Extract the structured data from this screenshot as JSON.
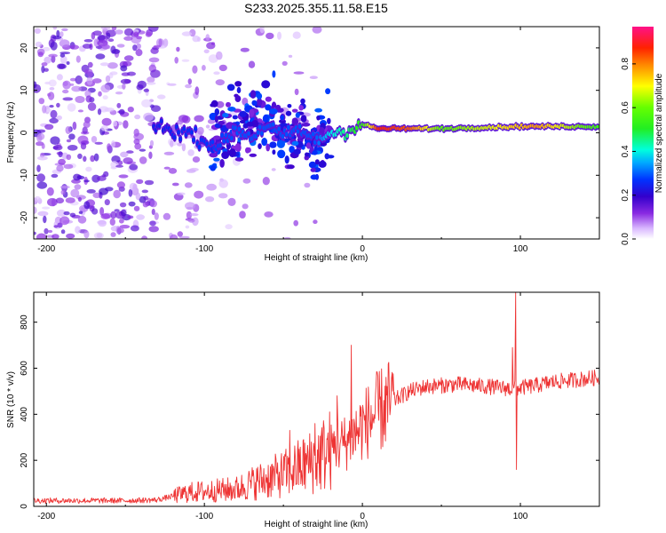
{
  "chart_data": [
    {
      "type": "heatmap",
      "title": "S233.2025.355.11.58.E15",
      "xlabel": "Height of straight line (km)",
      "ylabel": "Frequency (Hz)",
      "xlim": [
        -208,
        150
      ],
      "ylim": [
        -25,
        25
      ],
      "xticks": [
        -200,
        -100,
        0,
        100
      ],
      "yticks": [
        -20,
        -10,
        0,
        10,
        20
      ],
      "colorbar": {
        "label": "Normalized spectral amplitude",
        "range": [
          0.0,
          0.97
        ],
        "ticks": [
          "0.0",
          "0.2",
          "0.4",
          "0.6",
          "0.8"
        ],
        "tick_values": [
          0.0,
          0.2,
          0.4,
          0.6,
          0.8
        ]
      },
      "ridge": [
        {
          "x": -130,
          "f": 1.5
        },
        {
          "x": -120,
          "f": 0.5
        },
        {
          "x": -110,
          "f": 0.0
        },
        {
          "x": -100,
          "f": -2.0
        },
        {
          "x": -90,
          "f": -3.0
        },
        {
          "x": -80,
          "f": 1.0
        },
        {
          "x": -70,
          "f": -1.0
        },
        {
          "x": -60,
          "f": 2.0
        },
        {
          "x": -50,
          "f": -1.0
        },
        {
          "x": -40,
          "f": 1.0
        },
        {
          "x": -30,
          "f": -2.0
        },
        {
          "x": -20,
          "f": 0.0
        },
        {
          "x": -10,
          "f": 0.5
        },
        {
          "x": 0,
          "f": 2.0
        },
        {
          "x": 10,
          "f": 1.0
        },
        {
          "x": 50,
          "f": 1.0
        },
        {
          "x": 100,
          "f": 1.5
        },
        {
          "x": 150,
          "f": 1.5
        }
      ],
      "ridge_amplitude": [
        {
          "x": -130,
          "a": 0.25
        },
        {
          "x": -80,
          "a": 0.3
        },
        {
          "x": -30,
          "a": 0.3
        },
        {
          "x": -20,
          "a": 0.4
        },
        {
          "x": 0,
          "a": 0.55
        },
        {
          "x": 10,
          "a": 0.9
        },
        {
          "x": 30,
          "a": 0.85
        },
        {
          "x": 50,
          "a": 0.6
        },
        {
          "x": 80,
          "a": 0.7
        },
        {
          "x": 110,
          "a": 0.8
        },
        {
          "x": 150,
          "a": 0.55
        }
      ]
    },
    {
      "type": "line",
      "xlabel": "Height of straight line (km)",
      "ylabel": "SNR (10 * v/v)",
      "xlim": [
        -208,
        150
      ],
      "ylim": [
        0,
        930
      ],
      "xticks": [
        -200,
        -100,
        0,
        100
      ],
      "yticks": [
        0,
        200,
        400,
        600,
        800
      ],
      "color": "#ee3333",
      "trend": [
        {
          "x": -208,
          "y": 25
        },
        {
          "x": -150,
          "y": 25
        },
        {
          "x": -130,
          "y": 28
        },
        {
          "x": -110,
          "y": 60
        },
        {
          "x": -90,
          "y": 70
        },
        {
          "x": -80,
          "y": 75
        },
        {
          "x": -70,
          "y": 100
        },
        {
          "x": -60,
          "y": 120
        },
        {
          "x": -50,
          "y": 140
        },
        {
          "x": -40,
          "y": 170
        },
        {
          "x": -30,
          "y": 200
        },
        {
          "x": -20,
          "y": 250
        },
        {
          "x": -10,
          "y": 280
        },
        {
          "x": 0,
          "y": 350
        },
        {
          "x": 10,
          "y": 410
        },
        {
          "x": 20,
          "y": 460
        },
        {
          "x": 30,
          "y": 500
        },
        {
          "x": 40,
          "y": 520
        },
        {
          "x": 60,
          "y": 530
        },
        {
          "x": 80,
          "y": 520
        },
        {
          "x": 95,
          "y": 510
        },
        {
          "x": 110,
          "y": 525
        },
        {
          "x": 120,
          "y": 540
        },
        {
          "x": 150,
          "y": 560
        }
      ],
      "spikes": [
        {
          "x": -7,
          "y": 700
        },
        {
          "x": -16,
          "y": 480
        },
        {
          "x": -30,
          "y": 360
        },
        {
          "x": -46,
          "y": 330
        },
        {
          "x": 97,
          "y": 930
        },
        {
          "x": 97.5,
          "y": 160
        },
        {
          "x": 95,
          "y": 690
        }
      ]
    }
  ]
}
